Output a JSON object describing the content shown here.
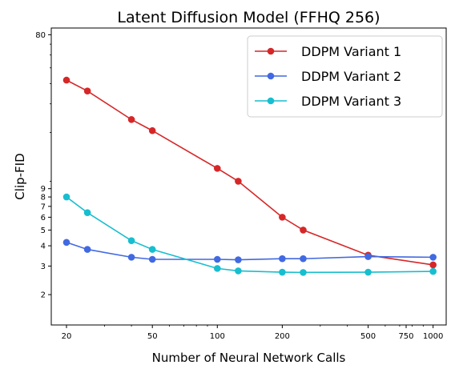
{
  "chart_data": {
    "type": "line",
    "title": "Latent Diffusion Model (FFHQ 256)",
    "xlabel": "Number of Neural Network Calls",
    "ylabel": "Clip-FID",
    "xscale": "log",
    "yscale": "log",
    "xlim": [
      17,
      1150
    ],
    "ylim": [
      1.3,
      88
    ],
    "xticks": [
      20,
      50,
      100,
      200,
      500,
      750,
      1000
    ],
    "yticks": [
      2,
      3,
      4,
      5,
      6,
      7,
      8,
      9,
      80
    ],
    "grid": false,
    "legend_position": "top-right",
    "x": [
      20,
      25,
      40,
      50,
      100,
      125,
      200,
      250,
      500,
      1000
    ],
    "series": [
      {
        "name": "DDPM Variant 1",
        "color": "#d62728",
        "values": [
          42,
          36,
          24,
          20.5,
          12,
          10,
          6,
          5,
          3.5,
          3.05
        ]
      },
      {
        "name": "DDPM Variant 2",
        "color": "#4169e1",
        "values": [
          4.2,
          3.8,
          3.4,
          3.3,
          3.3,
          3.28,
          3.33,
          3.33,
          3.43,
          3.4
        ]
      },
      {
        "name": "DDPM Variant 3",
        "color": "#17becf",
        "values": [
          8,
          6.4,
          4.3,
          3.8,
          2.9,
          2.8,
          2.75,
          2.74,
          2.75,
          2.78
        ]
      }
    ]
  }
}
